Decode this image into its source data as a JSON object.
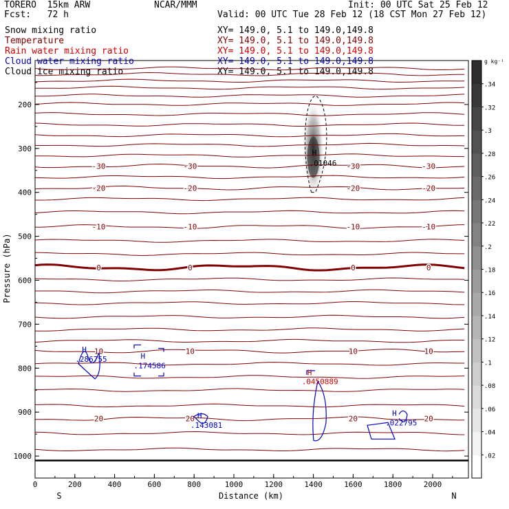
{
  "header": {
    "model": "TORERO  15km ARW",
    "org": "NCAR/MMM",
    "init": "Init: 00 UTC Sat 25 Feb 12",
    "fcst": "Fcst:   72 h",
    "valid": "Valid: 00 UTC Tue 28 Feb 12 (18 CST Mon 27 Feb 12)"
  },
  "legend": [
    {
      "name": "Snow mixing ratio",
      "xy": "XY= 149.0,  5.1 to 149.0,149.8",
      "color": "#000000"
    },
    {
      "name": "Temperature",
      "xy": "XY= 149.0,  5.1 to 149.0,149.8",
      "color": "#800000"
    },
    {
      "name": "Rain water mixing ratio",
      "xy": "XY= 149.0,  5.1 to 149.0,149.8",
      "color": "#d00000"
    },
    {
      "name": "Cloud water mixing ratio",
      "xy": "XY= 149.0,  5.1 to 149.0,149.8",
      "color": "#0000c8"
    },
    {
      "name": "Cloud ice mixing ratio",
      "xy": "XY= 149.0,  5.1 to 149.0,149.8",
      "color": "#000000"
    }
  ],
  "chart_data": {
    "type": "contour",
    "xlabel": "Distance (km)",
    "ylabel": "Pressure (hPa)",
    "xlim": [
      0,
      2180
    ],
    "ylim": [
      1050,
      100
    ],
    "x_ticks": [
      0,
      200,
      400,
      600,
      800,
      1000,
      1200,
      1400,
      1600,
      1800,
      2000
    ],
    "y_ticks": [
      200,
      300,
      400,
      500,
      600,
      700,
      800,
      900,
      1000
    ],
    "endpoints": {
      "left": "S",
      "right": "N"
    },
    "colorbar": {
      "unit": "g kg⁻¹",
      "ticks": [
        ".02",
        ".04",
        ".06",
        ".08",
        ".1",
        ".12",
        ".14",
        ".16",
        ".18",
        ".2",
        ".22",
        ".24",
        ".26",
        ".28",
        ".3",
        ".32",
        ".34"
      ]
    },
    "temperature_contours": [
      {
        "label": "-30",
        "pressure": 340
      },
      {
        "label": "-20",
        "pressure": 390
      },
      {
        "label": "-10",
        "pressure": 478
      },
      {
        "label": "0",
        "pressure": 571,
        "bold": true
      },
      {
        "label": "10",
        "pressure": 761
      },
      {
        "label": "20",
        "pressure": 915
      }
    ],
    "snow_max": {
      "label": "H",
      "value": ".01046",
      "x_km": 1400,
      "pressure": 325
    },
    "cloud_water_maxima": [
      {
        "label": "H",
        "value": ".286755",
        "x_km": 250,
        "pressure": 770
      },
      {
        "label": "H",
        "value": ".174586",
        "x_km": 545,
        "pressure": 785
      },
      {
        "label": "H",
        "value": ".143081",
        "x_km": 830,
        "pressure": 920
      },
      {
        "label": "H",
        "value": ".022795",
        "x_km": 1810,
        "pressure": 915
      }
    ],
    "rain_max": {
      "label": "H",
      "value": ".0450889",
      "x_km": 1390,
      "pressure": 822
    }
  }
}
